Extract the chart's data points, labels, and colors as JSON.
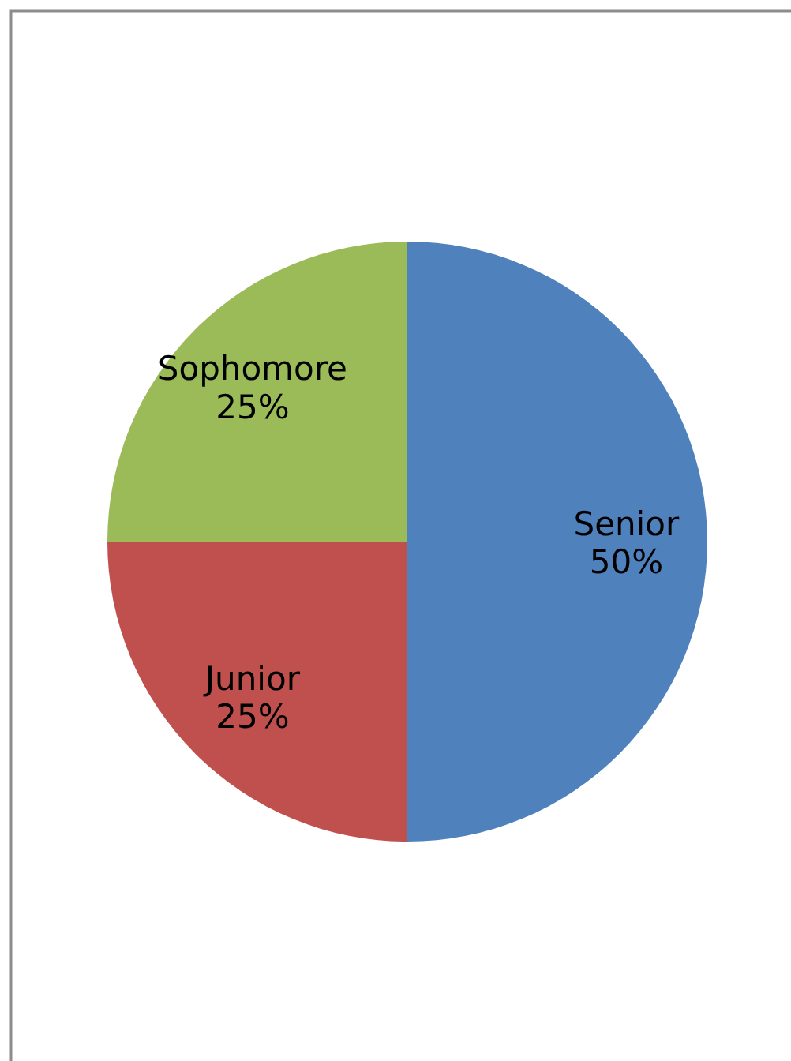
{
  "chart_data": {
    "type": "pie",
    "categories": [
      "Senior",
      "Junior",
      "Sophomore"
    ],
    "values": [
      50,
      25,
      25
    ],
    "colors": [
      "#4f81bd",
      "#c0504d",
      "#9bbb59"
    ],
    "value_labels": [
      "50%",
      "25%",
      "25%"
    ]
  }
}
